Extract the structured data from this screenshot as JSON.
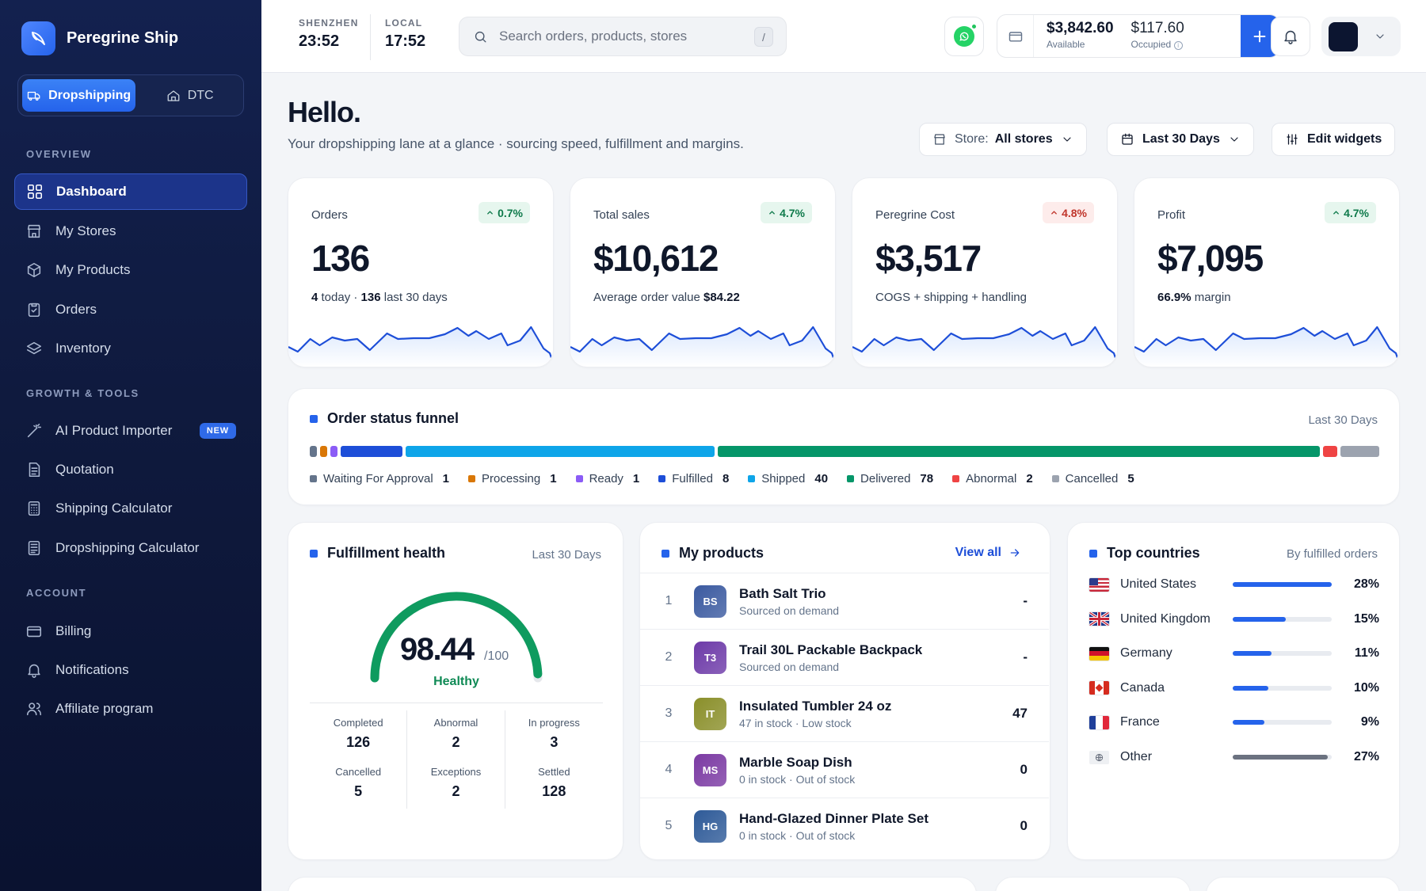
{
  "app": {
    "name": "Peregrine Ship"
  },
  "sidebar": {
    "modes": [
      {
        "label": "Dropshipping",
        "active": true
      },
      {
        "label": "DTC",
        "active": false
      }
    ],
    "sections": {
      "overview": "OVERVIEW",
      "growth": "GROWTH & TOOLS",
      "account": "ACCOUNT"
    },
    "items": [
      {
        "label": "Dashboard",
        "icon": "grid-icon",
        "active": true
      },
      {
        "label": "My Stores",
        "icon": "store-icon"
      },
      {
        "label": "My Products",
        "icon": "box-icon"
      },
      {
        "label": "Orders",
        "icon": "clipboard-icon"
      },
      {
        "label": "Inventory",
        "icon": "layers-icon"
      },
      {
        "label": "AI Product Importer",
        "icon": "wand-icon",
        "badge": "NEW"
      },
      {
        "label": "Quotation",
        "icon": "document-icon"
      },
      {
        "label": "Shipping Calculator",
        "icon": "calculator-icon"
      },
      {
        "label": "Dropshipping Calculator",
        "icon": "calculator-icon"
      },
      {
        "label": "Billing",
        "icon": "credit-card-icon"
      },
      {
        "label": "Notifications",
        "icon": "bell-icon"
      },
      {
        "label": "Affiliate program",
        "icon": "users-icon"
      }
    ]
  },
  "topbar": {
    "clocks": [
      {
        "label": "SHENZHEN",
        "time": "23:52"
      },
      {
        "label": "LOCAL",
        "time": "17:52"
      }
    ],
    "search": {
      "placeholder": "Search orders, products, stores",
      "shortcut": "/"
    },
    "wallet": {
      "available": "$3,842.60",
      "available_label": "Available",
      "occupied": "$117.60",
      "occupied_label": "Occupied"
    }
  },
  "header": {
    "greeting": "Hello.",
    "subtitle": "Your dropshipping lane at a glance · sourcing speed, fulfillment and margins.",
    "store_label": "Store:",
    "store_value": "All stores",
    "date_range": "Last 30 Days",
    "edit_widgets": "Edit widgets"
  },
  "kpis": [
    {
      "label": "Orders",
      "delta": "0.7%",
      "direction": "up",
      "value": "136",
      "sub_a": "4",
      "sub_b": " today · ",
      "sub_c": "136",
      "sub_d": " last 30 days"
    },
    {
      "label": "Total sales",
      "delta": "4.7%",
      "direction": "up",
      "value": "$10,612",
      "sub_a": "",
      "sub_b": "Average order value ",
      "sub_c": "$84.22",
      "sub_d": ""
    },
    {
      "label": "Peregrine Cost",
      "delta": "4.8%",
      "direction": "down",
      "value": "$3,517",
      "sub_a": "",
      "sub_b": "COGS + shipping + handling",
      "sub_c": "",
      "sub_d": ""
    },
    {
      "label": "Profit",
      "delta": "4.7%",
      "direction": "up",
      "value": "$7,095",
      "sub_a": "66.9%",
      "sub_b": " margin",
      "sub_c": "",
      "sub_d": ""
    }
  ],
  "funnel": {
    "title": "Order status funnel",
    "range": "Last 30 Days",
    "stages": [
      {
        "label": "Waiting For Approval",
        "count": "1",
        "value": 1,
        "color": "#64748b"
      },
      {
        "label": "Processing",
        "count": "1",
        "value": 1,
        "color": "#d97706"
      },
      {
        "label": "Ready",
        "count": "1",
        "value": 1,
        "color": "#8b5cf6"
      },
      {
        "label": "Fulfilled",
        "count": "8",
        "value": 8,
        "color": "#1d4ed8"
      },
      {
        "label": "Shipped",
        "count": "40",
        "value": 40,
        "color": "#0ea5e9"
      },
      {
        "label": "Delivered",
        "count": "78",
        "value": 78,
        "color": "#059669"
      },
      {
        "label": "Abnormal",
        "count": "2",
        "value": 2,
        "color": "#ef4444"
      },
      {
        "label": "Cancelled",
        "count": "5",
        "value": 5,
        "color": "#9ca3af"
      }
    ]
  },
  "fulfillment": {
    "title": "Fulfillment health",
    "range": "Last 30 Days",
    "score": "98.44",
    "score_value": 98.44,
    "max": "/100",
    "status": "Healthy",
    "stats": [
      {
        "label": "Completed",
        "value": "126"
      },
      {
        "label": "Abnormal",
        "value": "2"
      },
      {
        "label": "In progress",
        "value": "3"
      },
      {
        "label": "Cancelled",
        "value": "5"
      },
      {
        "label": "Exceptions",
        "value": "2"
      },
      {
        "label": "Settled",
        "value": "128"
      }
    ]
  },
  "products": {
    "title": "My products",
    "view_all": "View all",
    "items": [
      {
        "rank": "1",
        "initials": "BS",
        "name": "Bath Salt Trio",
        "status": "Sourced on demand",
        "qty": "-",
        "color": "#3b5aa0"
      },
      {
        "rank": "2",
        "initials": "T3",
        "name": "Trail 30L Packable Backpack",
        "status": "Sourced on demand",
        "qty": "-",
        "color": "#6d3aa8"
      },
      {
        "rank": "3",
        "initials": "IT",
        "name": "Insulated Tumbler 24 oz",
        "status": "47 in stock · Low stock",
        "qty": "47",
        "color": "#8a8f2a"
      },
      {
        "rank": "4",
        "initials": "MS",
        "name": "Marble Soap Dish",
        "status": "0 in stock · Out of stock",
        "qty": "0",
        "color": "#7b3aa3"
      },
      {
        "rank": "5",
        "initials": "HG",
        "name": "Hand-Glazed Dinner Plate Set",
        "status": "0 in stock · Out of stock",
        "qty": "0",
        "color": "#2e5a98"
      }
    ]
  },
  "countries": {
    "title": "Top countries",
    "meta": "By fulfilled orders",
    "items": [
      {
        "name": "United States",
        "pct": "28%",
        "share": 0.28,
        "flag": "us",
        "color": "#2563eb"
      },
      {
        "name": "United Kingdom",
        "pct": "15%",
        "share": 0.15,
        "flag": "uk",
        "color": "#2563eb"
      },
      {
        "name": "Germany",
        "pct": "11%",
        "share": 0.11,
        "flag": "de",
        "color": "#2563eb"
      },
      {
        "name": "Canada",
        "pct": "10%",
        "share": 0.1,
        "flag": "ca",
        "color": "#2563eb"
      },
      {
        "name": "France",
        "pct": "9%",
        "share": 0.09,
        "flag": "fr",
        "color": "#2563eb"
      },
      {
        "name": "Other",
        "pct": "27%",
        "share": 0.27,
        "flag": "globe",
        "color": "#6b7280"
      }
    ]
  },
  "colors": {
    "accent": "#2563eb",
    "sidebar": "#13214f",
    "healthy": "#059669"
  }
}
